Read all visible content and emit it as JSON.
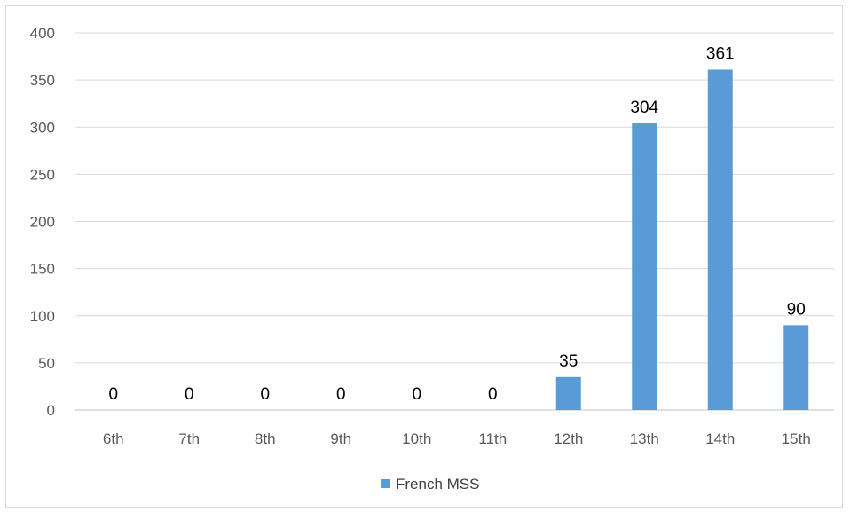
{
  "chart_data": {
    "type": "bar",
    "categories": [
      "6th",
      "7th",
      "8th",
      "9th",
      "10th",
      "11th",
      "12th",
      "13th",
      "14th",
      "15th"
    ],
    "series": [
      {
        "name": "French MSS",
        "values": [
          0,
          0,
          0,
          0,
          0,
          0,
          35,
          304,
          361,
          90
        ],
        "color": "#5b9bd5"
      }
    ],
    "ylim": [
      0,
      400
    ],
    "yticks": [
      0,
      50,
      100,
      150,
      200,
      250,
      300,
      350,
      400
    ],
    "grid": true,
    "data_labels": true,
    "legend_position": "bottom",
    "title": "",
    "xlabel": "",
    "ylabel": ""
  }
}
